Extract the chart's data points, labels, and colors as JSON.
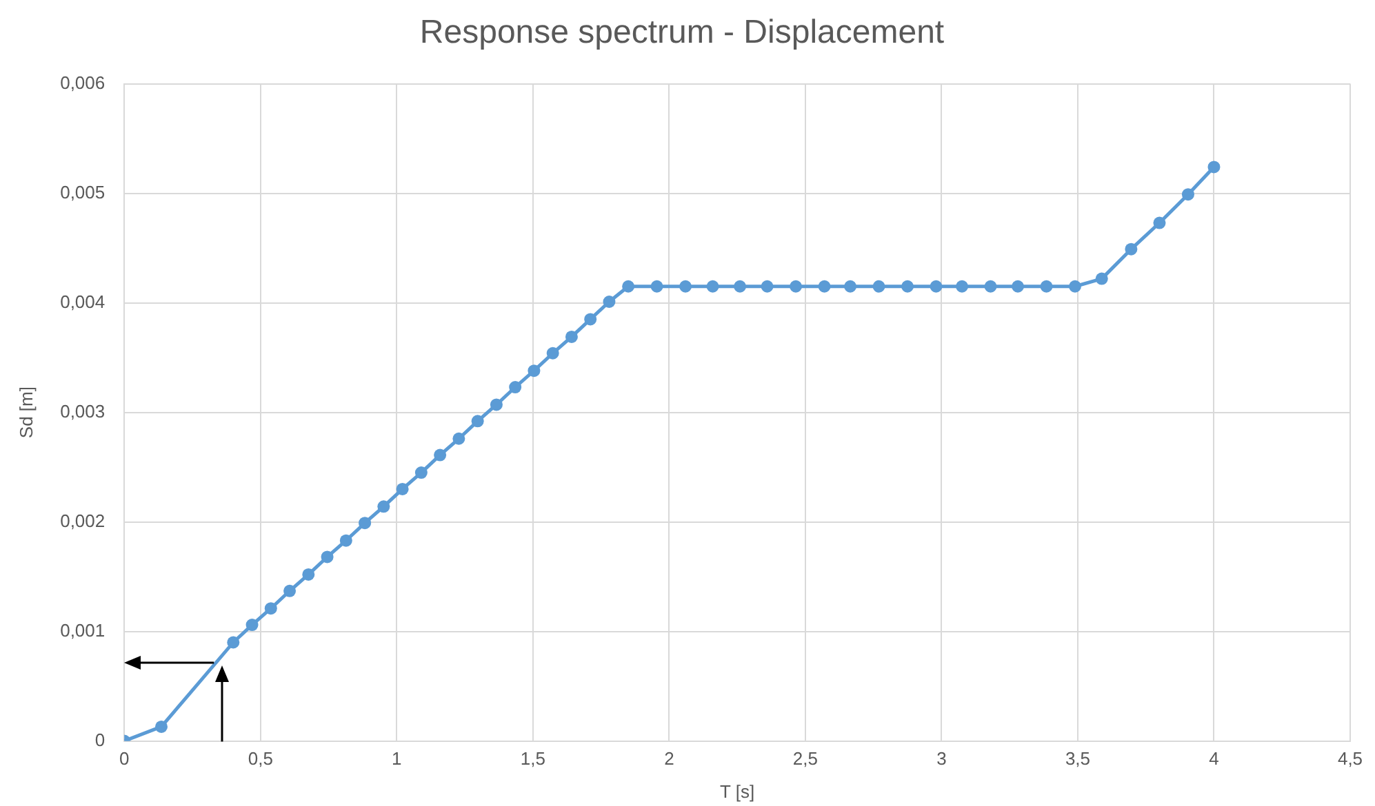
{
  "chart_data": {
    "type": "line",
    "title": "Response spectrum - Displacement",
    "xlabel": "T [s]",
    "ylabel": "Sd [m]",
    "series": [
      {
        "color": "#5b9bd5",
        "x": [
          0,
          0.136,
          0.4,
          0.469,
          0.538,
          0.607,
          0.676,
          0.745,
          0.814,
          0.883,
          0.952,
          1.021,
          1.09,
          1.159,
          1.228,
          1.297,
          1.366,
          1.435,
          1.504,
          1.573,
          1.642,
          1.711,
          1.78,
          1.85,
          1.955,
          2.06,
          2.16,
          2.26,
          2.36,
          2.465,
          2.57,
          2.665,
          2.77,
          2.875,
          2.98,
          3.075,
          3.18,
          3.28,
          3.385,
          3.49,
          3.588,
          3.696,
          3.8,
          3.905,
          4.0
        ],
        "values": [
          0,
          0.00013,
          0.0009,
          0.00106,
          0.00121,
          0.00137,
          0.00152,
          0.00168,
          0.00183,
          0.00199,
          0.00214,
          0.0023,
          0.00245,
          0.00261,
          0.00276,
          0.00292,
          0.00307,
          0.00323,
          0.00338,
          0.00354,
          0.00369,
          0.00385,
          0.00401,
          0.00415,
          0.00415,
          0.00415,
          0.00415,
          0.00415,
          0.00415,
          0.00415,
          0.00415,
          0.00415,
          0.00415,
          0.00415,
          0.00415,
          0.00415,
          0.00415,
          0.00415,
          0.00415,
          0.00415,
          0.00422,
          0.00449,
          0.00473,
          0.00499,
          0.00524
        ]
      }
    ],
    "xlim": [
      0,
      4.5
    ],
    "xticks": [
      0,
      {
        "value": 0.5,
        "label": "0,5"
      },
      1,
      {
        "value": 1.5,
        "label": "1,5"
      },
      2,
      {
        "value": 2.5,
        "label": "2,5"
      },
      3,
      {
        "value": 3.5,
        "label": "3,5"
      },
      4,
      {
        "value": 4.5,
        "label": "4,5"
      }
    ],
    "ylim": [
      0,
      0.006
    ],
    "yticks": [
      0,
      {
        "value": 0.001,
        "label": "0,001"
      },
      {
        "value": 0.002,
        "label": "0,002"
      },
      {
        "value": 0.003,
        "label": "0,003"
      },
      {
        "value": 0.004,
        "label": "0,004"
      },
      {
        "value": 0.005,
        "label": "0,005"
      },
      {
        "value": 0.006,
        "label": "0,006"
      }
    ],
    "grid": true,
    "legend": false,
    "marker": "circle",
    "line_style": "solid"
  }
}
